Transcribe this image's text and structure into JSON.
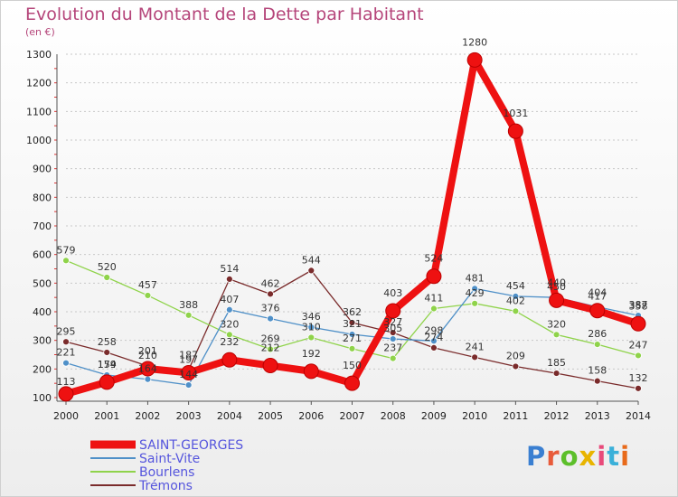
{
  "title": "Evolution du Montant de la Dette par Habitant",
  "unit": "(en €)",
  "logo": {
    "text": "Proxiti",
    "colors": [
      "#3a7fd1",
      "#e85b3a",
      "#5cbf2a",
      "#e8b400",
      "#e84a7a",
      "#3ab0d9",
      "#e86a1a"
    ]
  },
  "chart_data": {
    "type": "line",
    "title": "Evolution du Montant de la Dette par Habitant",
    "ylabel": "(en €)",
    "xlabel": "",
    "ylim": [
      100,
      1300
    ],
    "yticks": [
      100,
      200,
      300,
      400,
      500,
      600,
      700,
      800,
      900,
      1000,
      1100,
      1200,
      1300
    ],
    "grid": "horizontal dashed",
    "legend_position": "bottom-left",
    "x": [
      "2000",
      "2001",
      "2002",
      "2003",
      "2004",
      "2005",
      "2006",
      "2007",
      "2008",
      "2009",
      "2010",
      "2011",
      "2012",
      "2013",
      "2014"
    ],
    "series": [
      {
        "name": "Trémons",
        "color": "#7a2b2b",
        "values": [
          295,
          258,
          210,
          197,
          514,
          462,
          544,
          362,
          327,
          274,
          241,
          209,
          185,
          158,
          132
        ]
      },
      {
        "name": "Bourlens",
        "color": "#8fd34a",
        "values": [
          579,
          520,
          457,
          388,
          320,
          269,
          310,
          271,
          237,
          411,
          429,
          402,
          320,
          286,
          247
        ]
      },
      {
        "name": "Saint-Vite",
        "color": "#4f90c8",
        "values": [
          221,
          179,
          164,
          144,
          407,
          376,
          346,
          321,
          305,
          298,
          481,
          454,
          450,
          417,
          387
        ]
      },
      {
        "name": "SAINT-GEORGES",
        "color": "#ee1111",
        "values": [
          113,
          154,
          201,
          187,
          232,
          212,
          192,
          150,
          403,
          524,
          1280,
          1031,
          440,
          404,
          358
        ],
        "emphasis": true
      }
    ],
    "legend_order": [
      "SAINT-GEORGES",
      "Saint-Vite",
      "Bourlens",
      "Trémons"
    ]
  }
}
